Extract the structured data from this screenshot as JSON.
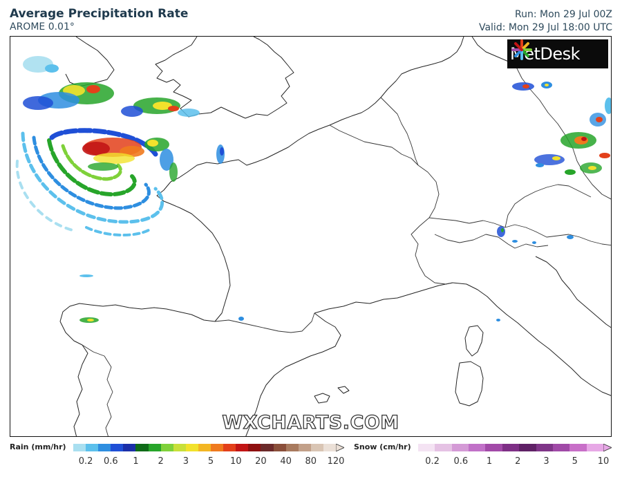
{
  "header": {
    "title": "Average Precipitation Rate",
    "model": "AROME 0.01°",
    "run": "Run: Mon 29 Jul 00Z",
    "valid": "Valid: Mon 29 Jul 18:00 UTC"
  },
  "brand": {
    "logo_text": "MetDesk",
    "watermark": "WXCHARTS.COM"
  },
  "legend": {
    "rain": {
      "label": "Rain (mm/hr)",
      "ticks": [
        "0.2",
        "0.6",
        "1",
        "2",
        "3",
        "5",
        "10",
        "20",
        "40",
        "80",
        "120"
      ],
      "colors": [
        "#a9dff0",
        "#5cc0ec",
        "#2e8ee0",
        "#1f4fd6",
        "#1b2fa8",
        "#0f6b18",
        "#27a52a",
        "#7fd13a",
        "#c8e03a",
        "#f2e22c",
        "#f3b623",
        "#ef7a1e",
        "#e3401a",
        "#c21515",
        "#8e1010",
        "#6b2a2a",
        "#8a4f3a",
        "#a87a5e",
        "#c2a089",
        "#d9c5b4",
        "#ebe0d7"
      ]
    },
    "snow": {
      "label": "Snow (cm/hr)",
      "ticks": [
        "0.2",
        "0.6",
        "1",
        "2",
        "3",
        "5",
        "10"
      ],
      "colors": [
        "#f4e3f3",
        "#e5c2e4",
        "#d49ad6",
        "#c171c8",
        "#a24aa8",
        "#7e2f86",
        "#5f2166",
        "#7f3588",
        "#a04aa7",
        "#c86fc8",
        "#e7a8e6"
      ]
    }
  },
  "map_layers": {
    "precip_palette": [
      "#5cc0ec",
      "#2e8ee0",
      "#1f4fd6",
      "#27a52a",
      "#7fd13a",
      "#f2e22c",
      "#ef7a1e",
      "#e3401a",
      "#c21515"
    ]
  }
}
